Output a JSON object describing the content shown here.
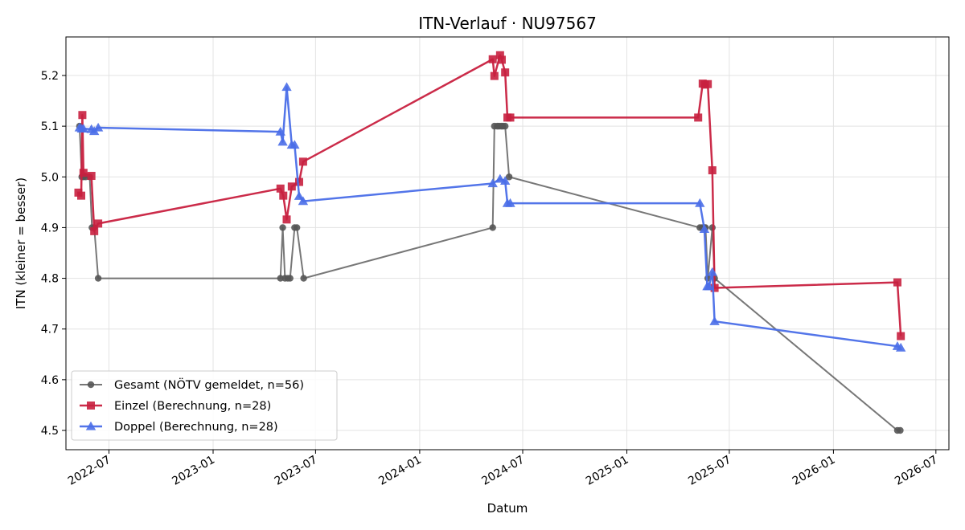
{
  "chart_data": {
    "type": "line",
    "title": "ITN-Verlauf · NU97567",
    "xlabel": "Datum",
    "ylabel": "ITN  (kleiner = besser)",
    "x_tick_labels": [
      "2022-07",
      "2023-01",
      "2023-07",
      "2024-01",
      "2024-07",
      "2025-01",
      "2025-07",
      "2026-01",
      "2026-07"
    ],
    "y_tick_labels": [
      "4.5",
      "4.6",
      "4.7",
      "4.8",
      "4.9",
      "5.0",
      "5.1",
      "5.2"
    ],
    "xlim": [
      "2022-04-16",
      "2026-07-24"
    ],
    "ylim": [
      4.462,
      5.276
    ],
    "grid": true,
    "legend_position": "lower-left",
    "series": [
      {
        "name": "Gesamt (NÖTV gemeldet, n=56)",
        "color": "#555555",
        "marker": "circle",
        "points": [
          {
            "x": "2022-05-10",
            "y": 5.1
          },
          {
            "x": "2022-05-14",
            "y": 5.0
          },
          {
            "x": "2022-05-17",
            "y": 5.0
          },
          {
            "x": "2022-05-21",
            "y": 5.0
          },
          {
            "x": "2022-05-28",
            "y": 5.0
          },
          {
            "x": "2022-06-01",
            "y": 4.9
          },
          {
            "x": "2022-06-05",
            "y": 4.9
          },
          {
            "x": "2022-06-12",
            "y": 4.8
          },
          {
            "x": "2023-04-30",
            "y": 4.8
          },
          {
            "x": "2023-05-04",
            "y": 4.9
          },
          {
            "x": "2023-05-08",
            "y": 4.8
          },
          {
            "x": "2023-05-13",
            "y": 4.8
          },
          {
            "x": "2023-05-17",
            "y": 4.8
          },
          {
            "x": "2023-05-25",
            "y": 4.9
          },
          {
            "x": "2023-05-29",
            "y": 4.9
          },
          {
            "x": "2023-06-10",
            "y": 4.8
          },
          {
            "x": "2024-05-09",
            "y": 4.9
          },
          {
            "x": "2024-05-12",
            "y": 5.1
          },
          {
            "x": "2024-05-17",
            "y": 5.1
          },
          {
            "x": "2024-05-20",
            "y": 5.1
          },
          {
            "x": "2024-05-24",
            "y": 5.1
          },
          {
            "x": "2024-05-27",
            "y": 5.1
          },
          {
            "x": "2024-05-31",
            "y": 5.1
          },
          {
            "x": "2024-06-07",
            "y": 5.0
          },
          {
            "x": "2025-05-10",
            "y": 4.9
          },
          {
            "x": "2025-05-14",
            "y": 4.9
          },
          {
            "x": "2025-05-18",
            "y": 4.9
          },
          {
            "x": "2025-05-20",
            "y": 4.9
          },
          {
            "x": "2025-05-24",
            "y": 4.8
          },
          {
            "x": "2025-06-01",
            "y": 4.9
          },
          {
            "x": "2025-06-05",
            "y": 4.8
          },
          {
            "x": "2026-04-24",
            "y": 4.5
          },
          {
            "x": "2026-04-29",
            "y": 4.5
          }
        ]
      },
      {
        "name": "Einzel (Berechnung, n=28)",
        "color": "#c8203f",
        "marker": "square",
        "points": [
          {
            "x": "2022-05-08",
            "y": 4.969
          },
          {
            "x": "2022-05-13",
            "y": 4.963
          },
          {
            "x": "2022-05-15",
            "y": 5.122
          },
          {
            "x": "2022-05-17",
            "y": 5.008
          },
          {
            "x": "2022-05-31",
            "y": 5.002
          },
          {
            "x": "2022-06-05",
            "y": 4.893
          },
          {
            "x": "2022-06-12",
            "y": 4.908
          },
          {
            "x": "2023-04-30",
            "y": 4.977
          },
          {
            "x": "2023-05-05",
            "y": 4.963
          },
          {
            "x": "2023-05-11",
            "y": 4.916
          },
          {
            "x": "2023-05-20",
            "y": 4.981
          },
          {
            "x": "2023-06-02",
            "y": 4.99
          },
          {
            "x": "2023-06-09",
            "y": 5.03
          },
          {
            "x": "2024-05-09",
            "y": 5.232
          },
          {
            "x": "2024-05-12",
            "y": 5.199
          },
          {
            "x": "2024-05-22",
            "y": 5.24
          },
          {
            "x": "2024-05-25",
            "y": 5.231
          },
          {
            "x": "2024-05-31",
            "y": 5.206
          },
          {
            "x": "2024-06-04",
            "y": 5.117
          },
          {
            "x": "2024-06-09",
            "y": 5.117
          },
          {
            "x": "2025-05-07",
            "y": 5.117
          },
          {
            "x": "2025-05-15",
            "y": 5.184
          },
          {
            "x": "2025-05-19",
            "y": 5.182
          },
          {
            "x": "2025-05-24",
            "y": 5.183
          },
          {
            "x": "2025-06-01",
            "y": 5.013
          },
          {
            "x": "2025-06-05",
            "y": 4.781
          },
          {
            "x": "2026-04-24",
            "y": 4.792
          },
          {
            "x": "2026-04-30",
            "y": 4.686
          }
        ]
      },
      {
        "name": "Doppel (Berechnung, n=28)",
        "color": "#4a6ee8",
        "marker": "triangle",
        "points": [
          {
            "x": "2022-05-10",
            "y": 5.097
          },
          {
            "x": "2022-05-14",
            "y": 5.095
          },
          {
            "x": "2022-05-17",
            "y": 5.095
          },
          {
            "x": "2022-05-31",
            "y": 5.094
          },
          {
            "x": "2022-06-05",
            "y": 5.09
          },
          {
            "x": "2022-06-12",
            "y": 5.097
          },
          {
            "x": "2023-04-30",
            "y": 5.089
          },
          {
            "x": "2023-05-04",
            "y": 5.069
          },
          {
            "x": "2023-05-11",
            "y": 5.177
          },
          {
            "x": "2023-05-20",
            "y": 5.063
          },
          {
            "x": "2023-05-25",
            "y": 5.063
          },
          {
            "x": "2023-06-02",
            "y": 4.962
          },
          {
            "x": "2023-06-09",
            "y": 4.952
          },
          {
            "x": "2024-05-09",
            "y": 4.987
          },
          {
            "x": "2024-05-22",
            "y": 4.996
          },
          {
            "x": "2024-05-31",
            "y": 4.992
          },
          {
            "x": "2024-06-04",
            "y": 4.948
          },
          {
            "x": "2024-06-09",
            "y": 4.948
          },
          {
            "x": "2025-05-10",
            "y": 4.948
          },
          {
            "x": "2025-05-18",
            "y": 4.897
          },
          {
            "x": "2025-05-23",
            "y": 4.784
          },
          {
            "x": "2025-05-26",
            "y": 4.784
          },
          {
            "x": "2025-06-01",
            "y": 4.812
          },
          {
            "x": "2025-06-05",
            "y": 4.715
          },
          {
            "x": "2026-04-24",
            "y": 4.666
          },
          {
            "x": "2026-04-30",
            "y": 4.663
          }
        ]
      }
    ]
  }
}
